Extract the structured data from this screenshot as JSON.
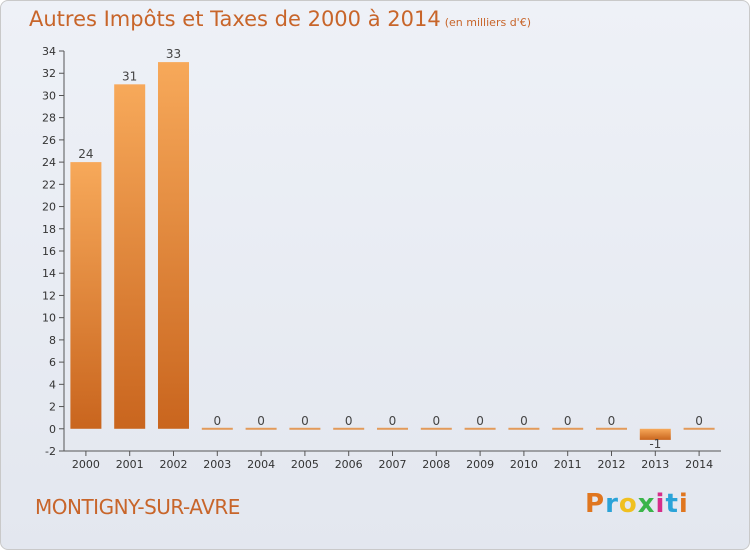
{
  "title": "Autres Impôts et Taxes de 2000 à 2014",
  "subtitle": "(en milliers d'€)",
  "town": "MONTIGNY-SUR-AVRE",
  "logo": "Proxiti",
  "colors": {
    "bar_top": "#f7a95a",
    "bar_bottom": "#c9651e",
    "title": "#c8652a"
  },
  "chart_data": {
    "type": "bar",
    "categories": [
      "2000",
      "2001",
      "2002",
      "2003",
      "2004",
      "2005",
      "2006",
      "2007",
      "2008",
      "2009",
      "2010",
      "2011",
      "2012",
      "2013",
      "2014"
    ],
    "values": [
      24,
      31,
      33,
      0,
      0,
      0,
      0,
      0,
      0,
      0,
      0,
      0,
      0,
      -1,
      0
    ],
    "ylim": [
      -2,
      34
    ],
    "yticks": [
      -2,
      0,
      2,
      4,
      6,
      8,
      10,
      12,
      14,
      16,
      18,
      20,
      22,
      24,
      26,
      28,
      30,
      32,
      34
    ],
    "grid": false
  }
}
